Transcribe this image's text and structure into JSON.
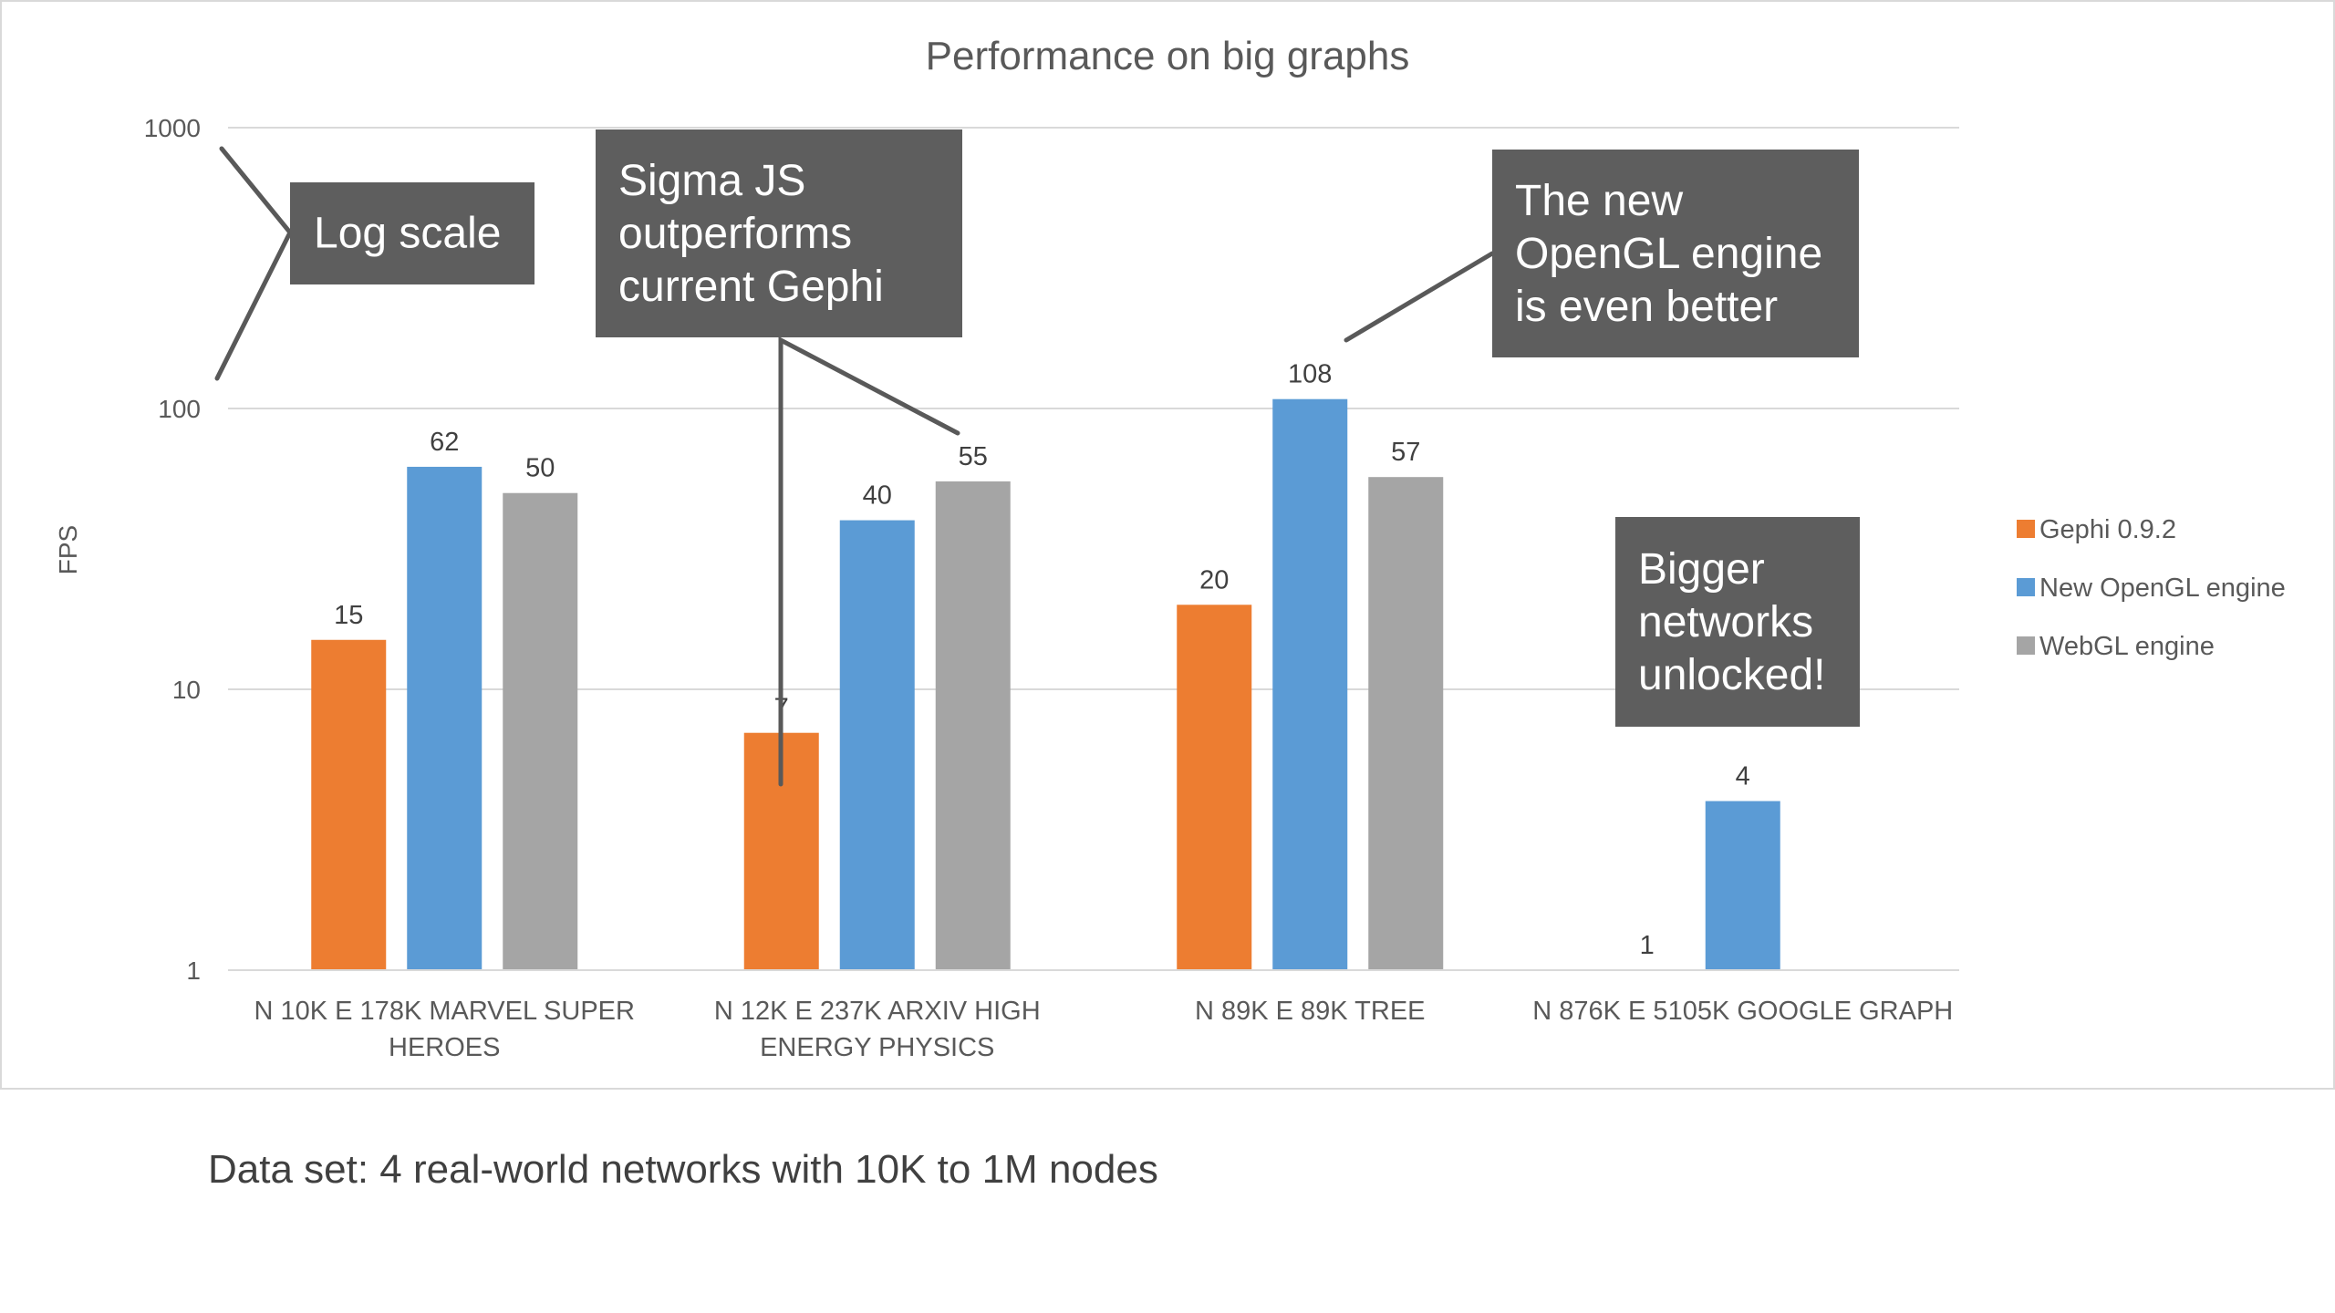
{
  "chart_data": {
    "type": "bar",
    "title": "Performance on big graphs",
    "ylabel": "FPS",
    "xlabel": "",
    "yscale": "log",
    "ylim": [
      1,
      1000
    ],
    "yticks": [
      "1",
      "10",
      "100",
      "1000"
    ],
    "gridlines": true,
    "legend_position": "right",
    "categories": [
      [
        "N 10K E 178K MARVEL SUPER",
        "HEROES"
      ],
      [
        "N 12K E 237K ARXIV HIGH",
        "ENERGY PHYSICS"
      ],
      [
        "N 89K E 89K TREE"
      ],
      [
        "N 876K E 5105K GOOGLE GRAPH"
      ]
    ],
    "series": [
      {
        "name": "Gephi 0.9.2",
        "color": "#ed7d31",
        "values": [
          15,
          7,
          20,
          1
        ],
        "labels": [
          "15",
          "7",
          "20",
          "1"
        ]
      },
      {
        "name": "New OpenGL engine",
        "color": "#5b9bd5",
        "values": [
          62,
          40,
          108,
          4
        ],
        "labels": [
          "62",
          "40",
          "108",
          "4"
        ]
      },
      {
        "name": "WebGL engine",
        "color": "#a5a5a5",
        "values": [
          50,
          55,
          57,
          null
        ],
        "labels": [
          "50",
          "55",
          "57",
          ""
        ]
      }
    ],
    "annotations": [
      {
        "id": "log-scale",
        "lines": [
          "Log scale"
        ]
      },
      {
        "id": "sigma",
        "lines": [
          "Sigma JS",
          "outperforms",
          "current Gephi"
        ]
      },
      {
        "id": "opengl",
        "lines": [
          "The new",
          "OpenGL engine",
          "is even better"
        ]
      },
      {
        "id": "bigger",
        "lines": [
          "Bigger",
          "networks",
          "unlocked!"
        ]
      }
    ]
  },
  "caption": "Data set: 4 real-world networks with 10K to 1M nodes"
}
